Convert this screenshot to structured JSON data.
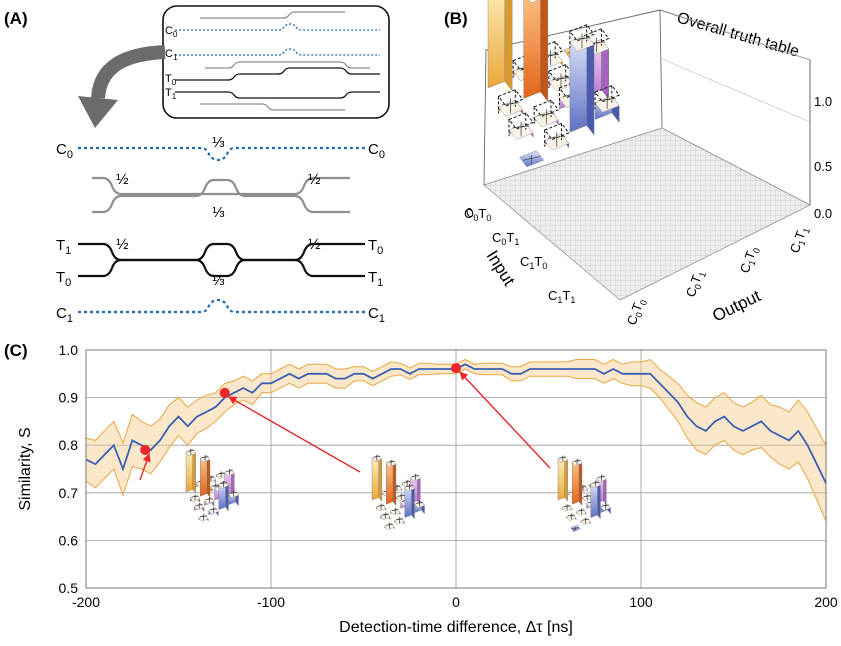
{
  "panels": {
    "a": {
      "tag": "(A)"
    },
    "b": {
      "tag": "(B)"
    },
    "c": {
      "tag": "(C)"
    }
  },
  "panel_a": {
    "inset_modes": [
      {
        "main": "C",
        "sub": "0"
      },
      {
        "main": "C",
        "sub": "1"
      },
      {
        "main": "T",
        "sub": "0"
      },
      {
        "main": "T",
        "sub": "1"
      }
    ],
    "left_modes": [
      {
        "main": "C",
        "sub": "0"
      },
      {
        "main": "T",
        "sub": "1"
      },
      {
        "main": "T",
        "sub": "0"
      },
      {
        "main": "C",
        "sub": "1"
      }
    ],
    "right_modes": [
      {
        "main": "C",
        "sub": "0"
      },
      {
        "main": "T",
        "sub": "0"
      },
      {
        "main": "T",
        "sub": "1"
      },
      {
        "main": "C",
        "sub": "1"
      }
    ],
    "splitters": {
      "third": "⅓",
      "half": "½"
    },
    "colors": {
      "control": "#1e6bb0",
      "gray": "#8e8e8e",
      "black": "#111111",
      "arrow": "#6b6b6b"
    }
  },
  "panel_b": {
    "title": "Overall truth table",
    "z_ticks": [
      "0.0",
      "0.5",
      "1.0"
    ],
    "input_label": "Input",
    "output_label": "Output",
    "input_ticks": [
      {
        "c": "0",
        "t": "0"
      },
      {
        "c": "0",
        "t": "1"
      },
      {
        "c": "1",
        "t": "0"
      },
      {
        "c": "1",
        "t": "1"
      }
    ],
    "output_ticks": [
      {
        "c": "0",
        "t": "0"
      },
      {
        "c": "0",
        "t": "1"
      },
      {
        "c": "1",
        "t": "0"
      },
      {
        "c": "1",
        "t": "1"
      }
    ],
    "row_colors": [
      "#f0c25a",
      "#ef7d2a",
      "#c790d6",
      "#7f8fd6"
    ]
  },
  "chart_data": {
    "type": "line",
    "title": "",
    "xlabel": "Detection-time difference, Δτ [ns]",
    "ylabel": "Similarity, S",
    "xlim": [
      -200,
      200
    ],
    "ylim": [
      0.5,
      1.0
    ],
    "x_ticks": [
      "-200",
      "-100",
      "0",
      "100",
      "200"
    ],
    "y_ticks": [
      "0.5",
      "0.6",
      "0.7",
      "0.8",
      "0.9",
      "1.0"
    ],
    "grid": "horizontal",
    "line_color": "#3a5fb5",
    "band_color": "#f6c98a",
    "series": [
      {
        "x": [
          -200,
          -195,
          -190,
          -185,
          -180,
          -175,
          -170,
          -165,
          -160,
          -155,
          -150,
          -145,
          -140,
          -135,
          -130,
          -125,
          -120,
          -115,
          -110,
          -105,
          -100,
          -95,
          -90,
          -85,
          -80,
          -75,
          -70,
          -65,
          -60,
          -55,
          -50,
          -45,
          -40,
          -35,
          -30,
          -25,
          -20,
          -15,
          -10,
          -5,
          0,
          5,
          10,
          15,
          20,
          25,
          30,
          35,
          40,
          45,
          50,
          55,
          60,
          65,
          70,
          75,
          80,
          85,
          90,
          95,
          100,
          105,
          110,
          115,
          120,
          125,
          130,
          135,
          140,
          145,
          150,
          155,
          160,
          165,
          170,
          175,
          180,
          185,
          190,
          195,
          200
        ],
        "y": [
          0.77,
          0.76,
          0.78,
          0.8,
          0.75,
          0.81,
          0.8,
          0.79,
          0.81,
          0.84,
          0.86,
          0.84,
          0.86,
          0.87,
          0.88,
          0.9,
          0.91,
          0.92,
          0.91,
          0.93,
          0.93,
          0.94,
          0.95,
          0.94,
          0.95,
          0.95,
          0.95,
          0.94,
          0.94,
          0.95,
          0.95,
          0.94,
          0.95,
          0.96,
          0.96,
          0.95,
          0.96,
          0.96,
          0.96,
          0.96,
          0.96,
          0.97,
          0.96,
          0.96,
          0.96,
          0.96,
          0.95,
          0.95,
          0.96,
          0.96,
          0.96,
          0.96,
          0.96,
          0.96,
          0.96,
          0.96,
          0.95,
          0.96,
          0.95,
          0.95,
          0.95,
          0.95,
          0.93,
          0.91,
          0.89,
          0.86,
          0.84,
          0.83,
          0.85,
          0.86,
          0.84,
          0.83,
          0.84,
          0.85,
          0.83,
          0.82,
          0.81,
          0.83,
          0.8,
          0.76,
          0.72
        ],
        "err": [
          0.045,
          0.05,
          0.05,
          0.05,
          0.055,
          0.055,
          0.05,
          0.05,
          0.045,
          0.045,
          0.04,
          0.04,
          0.035,
          0.035,
          0.03,
          0.03,
          0.025,
          0.025,
          0.025,
          0.02,
          0.02,
          0.02,
          0.02,
          0.02,
          0.02,
          0.02,
          0.02,
          0.02,
          0.02,
          0.015,
          0.015,
          0.015,
          0.015,
          0.015,
          0.012,
          0.012,
          0.012,
          0.012,
          0.01,
          0.01,
          0.01,
          0.01,
          0.01,
          0.012,
          0.012,
          0.012,
          0.015,
          0.015,
          0.015,
          0.015,
          0.015,
          0.015,
          0.015,
          0.02,
          0.02,
          0.02,
          0.02,
          0.02,
          0.02,
          0.025,
          0.025,
          0.03,
          0.03,
          0.035,
          0.04,
          0.045,
          0.05,
          0.05,
          0.05,
          0.05,
          0.05,
          0.05,
          0.05,
          0.055,
          0.055,
          0.06,
          0.06,
          0.065,
          0.07,
          0.075,
          0.08
        ]
      }
    ],
    "highlights": [
      {
        "x": -168,
        "y": 0.79
      },
      {
        "x": -125,
        "y": 0.91
      },
      {
        "x": 0,
        "y": 0.962
      }
    ],
    "highlight_color": "#e8262b"
  }
}
